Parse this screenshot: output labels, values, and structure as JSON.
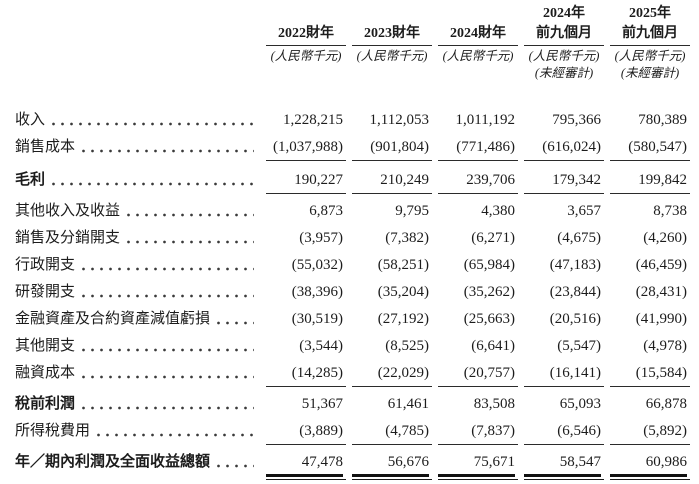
{
  "table": {
    "columns": [
      {
        "line1": "",
        "line2": "2022財年",
        "unit": "(人民幣千元)",
        "note": ""
      },
      {
        "line1": "",
        "line2": "2023財年",
        "unit": "(人民幣千元)",
        "note": ""
      },
      {
        "line1": "",
        "line2": "2024財年",
        "unit": "(人民幣千元)",
        "note": ""
      },
      {
        "line1": "2024年",
        "line2": "前九個月",
        "unit": "(人民幣千元)",
        "note": "(未經審計)"
      },
      {
        "line1": "2025年",
        "line2": "前九個月",
        "unit": "(人民幣千元)",
        "note": "(未經審計)"
      }
    ],
    "rows": [
      {
        "label": "收入",
        "values": [
          "1,228,215",
          "1,112,053",
          "1,011,192",
          "795,366",
          "780,389"
        ]
      },
      {
        "label": "銷售成本",
        "values": [
          "(1,037,988)",
          "(901,804)",
          "(771,486)",
          "(616,024)",
          "(580,547)"
        ]
      },
      {
        "label": "毛利",
        "values": [
          "190,227",
          "210,249",
          "239,706",
          "179,342",
          "199,842"
        ]
      },
      {
        "label": "其他收入及收益",
        "values": [
          "6,873",
          "9,795",
          "4,380",
          "3,657",
          "8,738"
        ]
      },
      {
        "label": "銷售及分銷開支",
        "values": [
          "(3,957)",
          "(7,382)",
          "(6,271)",
          "(4,675)",
          "(4,260)"
        ]
      },
      {
        "label": "行政開支",
        "values": [
          "(55,032)",
          "(58,251)",
          "(65,984)",
          "(47,183)",
          "(46,459)"
        ]
      },
      {
        "label": "研發開支",
        "values": [
          "(38,396)",
          "(35,204)",
          "(35,262)",
          "(23,844)",
          "(28,431)"
        ]
      },
      {
        "label": "金融資產及合約資產減值虧損",
        "values": [
          "(30,519)",
          "(27,192)",
          "(25,663)",
          "(20,516)",
          "(41,990)"
        ]
      },
      {
        "label": "其他開支",
        "values": [
          "(3,544)",
          "(8,525)",
          "(6,641)",
          "(5,547)",
          "(4,978)"
        ]
      },
      {
        "label": "融資成本",
        "values": [
          "(14,285)",
          "(22,029)",
          "(20,757)",
          "(16,141)",
          "(15,584)"
        ]
      },
      {
        "label": "稅前利潤",
        "values": [
          "51,367",
          "61,461",
          "83,508",
          "65,093",
          "66,878"
        ]
      },
      {
        "label": "所得稅費用",
        "values": [
          "(3,889)",
          "(4,785)",
          "(7,837)",
          "(6,546)",
          "(5,892)"
        ]
      },
      {
        "label": "年／期內利潤及全面收益總額",
        "values": [
          "47,478",
          "56,676",
          "75,671",
          "58,547",
          "60,986"
        ]
      }
    ]
  },
  "colors": {
    "text": "#1c1c1c",
    "rule": "#2b2b2b",
    "background": "#ffffff"
  }
}
